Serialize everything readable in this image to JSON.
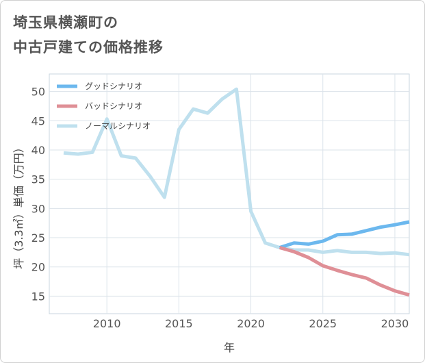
{
  "title_lines": [
    "埼玉県横瀬町の",
    "中古戸建ての価格推移"
  ],
  "chart_data": {
    "type": "line",
    "title": "埼玉県横瀬町の中古戸建ての価格推移",
    "xlabel": "年",
    "ylabel": "坪（3.3㎡）単価（万円）",
    "xlim": [
      2006,
      2031
    ],
    "ylim": [
      12,
      53
    ],
    "xticks": [
      2010,
      2015,
      2020,
      2025,
      2030
    ],
    "yticks": [
      15,
      20,
      25,
      30,
      35,
      40,
      45,
      50
    ],
    "legend_position": "top-left",
    "series": [
      {
        "name": "グッドシナリオ",
        "color": "#6cb8ee",
        "x": [
          2022,
          2023,
          2024,
          2025,
          2026,
          2027,
          2028,
          2029,
          2030,
          2031
        ],
        "values": [
          23.3,
          24.1,
          23.9,
          24.4,
          25.5,
          25.6,
          26.2,
          26.8,
          27.2,
          27.7
        ]
      },
      {
        "name": "バッドシナリオ",
        "color": "#df8f96",
        "x": [
          2022,
          2023,
          2024,
          2025,
          2026,
          2027,
          2028,
          2029,
          2030,
          2031
        ],
        "values": [
          23.3,
          22.6,
          21.6,
          20.2,
          19.4,
          18.7,
          18.1,
          16.9,
          15.9,
          15.2
        ]
      },
      {
        "name": "ノーマルシナリオ",
        "color": "#bfe0ee",
        "x": [
          2007,
          2008,
          2009,
          2010,
          2011,
          2012,
          2013,
          2014,
          2015,
          2016,
          2017,
          2018,
          2019,
          2020,
          2021,
          2022,
          2023,
          2024,
          2025,
          2026,
          2027,
          2028,
          2029,
          2030,
          2031
        ],
        "values": [
          39.5,
          39.3,
          39.6,
          45.3,
          39.0,
          38.6,
          35.5,
          31.9,
          43.5,
          47.0,
          46.3,
          48.7,
          50.4,
          29.5,
          24.1,
          23.3,
          22.9,
          22.9,
          22.5,
          22.8,
          22.5,
          22.5,
          22.3,
          22.4,
          22.1
        ]
      }
    ]
  }
}
